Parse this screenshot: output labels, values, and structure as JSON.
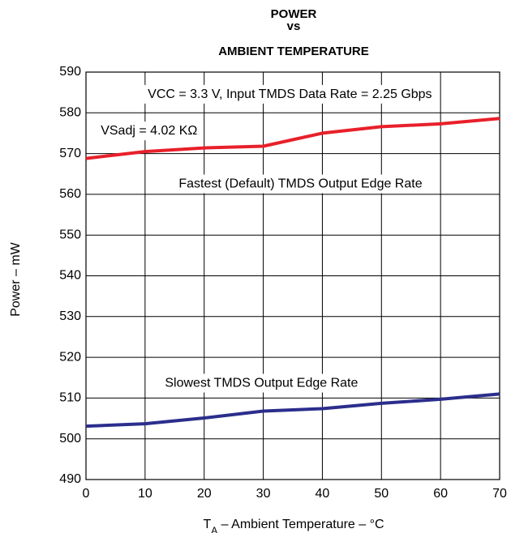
{
  "chart_data": {
    "type": "line",
    "title": [
      "POWER",
      "vs",
      "AMBIENT TEMPERATURE"
    ],
    "xlabel": {
      "prefix": "T",
      "sub": "A",
      "suffix": " – Ambient Temperature – °C"
    },
    "ylabel": "Power – mW",
    "xlim": [
      0,
      70
    ],
    "ylim": [
      490,
      590
    ],
    "xticks": [
      0,
      10,
      20,
      30,
      40,
      50,
      60,
      70
    ],
    "yticks": [
      490,
      500,
      510,
      520,
      530,
      540,
      550,
      560,
      570,
      580,
      590
    ],
    "grid": true,
    "series": [
      {
        "name": "Fastest (Default) TMDS Output Edge Rate",
        "color": "#e8202a",
        "x": [
          0,
          10,
          20,
          30,
          40,
          50,
          60,
          70
        ],
        "y": [
          568.8,
          570.5,
          571.4,
          571.8,
          575.0,
          576.6,
          577.3,
          578.6
        ]
      },
      {
        "name": "Slowest TMDS Output Edge Rate",
        "color": "#2b2e8c",
        "x": [
          0,
          10,
          20,
          30,
          40,
          50,
          60,
          70
        ],
        "y": [
          503.1,
          503.7,
          505.1,
          506.8,
          507.4,
          508.7,
          509.7,
          511.0
        ]
      }
    ],
    "annotations": [
      {
        "text": "VCC = 3.3 V, Input TMDS Data Rate = 2.25 Gbps",
        "x": 34.5,
        "y": 584.5
      },
      {
        "text": "VSadj = 4.02 KΩ",
        "x": 2.5,
        "y": 575.5
      },
      {
        "text": "Fastest (Default) TMDS Output Edge Rate",
        "x": 36.3,
        "y": 562.5
      },
      {
        "text": "Slowest TMDS Output Edge Rate",
        "x": 29.7,
        "y": 513.6
      }
    ]
  }
}
